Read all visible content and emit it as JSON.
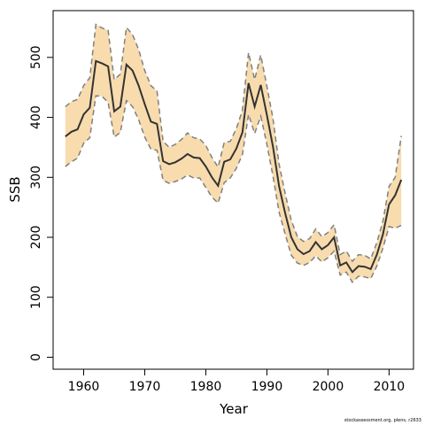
{
  "chart_data": {
    "type": "line",
    "xlabel": "Year",
    "ylabel": "SSB",
    "xlim": [
      1955,
      2014
    ],
    "ylim": [
      -20,
      578
    ],
    "xticks": [
      1960,
      1970,
      1980,
      1990,
      2000,
      2010
    ],
    "yticks": [
      0,
      100,
      200,
      300,
      400,
      500
    ],
    "grid": false,
    "legend": "none",
    "colors": {
      "band": "#f8dcae",
      "median": "#333333",
      "bounds": "#808080"
    },
    "x": [
      1957,
      1958,
      1959,
      1960,
      1961,
      1962,
      1963,
      1964,
      1965,
      1966,
      1967,
      1968,
      1969,
      1970,
      1971,
      1972,
      1973,
      1974,
      1975,
      1976,
      1977,
      1978,
      1979,
      1980,
      1981,
      1982,
      1983,
      1984,
      1985,
      1986,
      1987,
      1988,
      1989,
      1990,
      1991,
      1992,
      1993,
      1994,
      1995,
      1996,
      1997,
      1998,
      1999,
      2000,
      2001,
      2002,
      2003,
      2004,
      2005,
      2006,
      2007,
      2008,
      2009,
      2010,
      2011,
      2012
    ],
    "series": [
      {
        "role": "median",
        "values": [
          368,
          376,
          380,
          405,
          416,
          494,
          490,
          485,
          410,
          418,
          488,
          478,
          453,
          422,
          393,
          389,
          327,
          322,
          325,
          331,
          339,
          333,
          332,
          318,
          300,
          286,
          326,
          330,
          348,
          375,
          457,
          418,
          454,
          404,
          351,
          285,
          240,
          200,
          180,
          172,
          177,
          192,
          180,
          187,
          200,
          153,
          158,
          142,
          152,
          151,
          147,
          171,
          205,
          255,
          270,
          296
        ]
      },
      {
        "role": "upper",
        "values": [
          418,
          426,
          430,
          453,
          466,
          555,
          549,
          545,
          463,
          472,
          550,
          538,
          513,
          478,
          453,
          444,
          360,
          350,
          355,
          363,
          374,
          366,
          364,
          353,
          333,
          317,
          358,
          360,
          381,
          412,
          508,
          463,
          504,
          452,
          398,
          322,
          273,
          228,
          201,
          193,
          198,
          214,
          201,
          208,
          221,
          171,
          177,
          160,
          171,
          170,
          164,
          191,
          227,
          285,
          300,
          369
        ]
      },
      {
        "role": "lower",
        "values": [
          318,
          326,
          332,
          357,
          366,
          436,
          435,
          425,
          367,
          375,
          428,
          418,
          396,
          367,
          347,
          345,
          295,
          290,
          293,
          297,
          304,
          299,
          299,
          283,
          267,
          257,
          291,
          299,
          315,
          338,
          405,
          373,
          402,
          355,
          302,
          242,
          205,
          170,
          157,
          153,
          158,
          169,
          159,
          166,
          177,
          137,
          142,
          125,
          135,
          134,
          131,
          152,
          182,
          218,
          215,
          220
        ]
      }
    ]
  },
  "credit": "stockassessment.org, plens, r2633"
}
